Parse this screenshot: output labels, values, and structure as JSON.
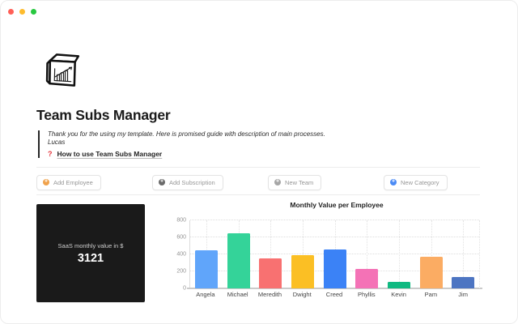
{
  "window": {
    "traffic_lights": [
      {
        "name": "close",
        "color": "#ff5f57"
      },
      {
        "name": "minimize",
        "color": "#febc2e"
      },
      {
        "name": "zoom",
        "color": "#28c840"
      }
    ]
  },
  "page": {
    "title": "Team Subs Manager",
    "quote_line1": "Thank you for the using my template. Here is promised guide with description of main processes.",
    "quote_line2": "Lucas",
    "guide_icon": "?",
    "guide_link": "How to use Team Subs Manager"
  },
  "actions": [
    {
      "label": "Add Employee",
      "icon": "plus-circle",
      "icon_color": "#f0a24c"
    },
    {
      "label": "Add Subscription",
      "icon": "plus-circle",
      "icon_color": "#6b6b6b"
    },
    {
      "label": "New Team",
      "icon": "plus-circle",
      "icon_color": "#a6a6a6"
    },
    {
      "label": "New Category",
      "icon": "plus-circle",
      "icon_color": "#4c8bf5"
    }
  ],
  "kpi_card": {
    "label": "SaaS monthly value in $",
    "value": "3121",
    "background": "#1a1a1a"
  },
  "chart_data": {
    "type": "bar",
    "title": "Monthly Value per Employee",
    "categories": [
      "Angela",
      "Michael",
      "Meredith",
      "Dwight",
      "Creed",
      "Phyllis",
      "Kevin",
      "Pam",
      "Jim"
    ],
    "values": [
      450,
      645,
      355,
      390,
      460,
      230,
      80,
      370,
      130
    ],
    "colors": [
      "#60a5fa",
      "#34d399",
      "#f87171",
      "#fbbf24",
      "#3b82f6",
      "#f472b6",
      "#10b981",
      "#fbac63",
      "#4d75c2"
    ],
    "xlabel": "",
    "ylabel": "",
    "ylim": [
      0,
      800
    ],
    "yticks": [
      0,
      200,
      400,
      600,
      800
    ],
    "grid": true,
    "legend": "none"
  }
}
